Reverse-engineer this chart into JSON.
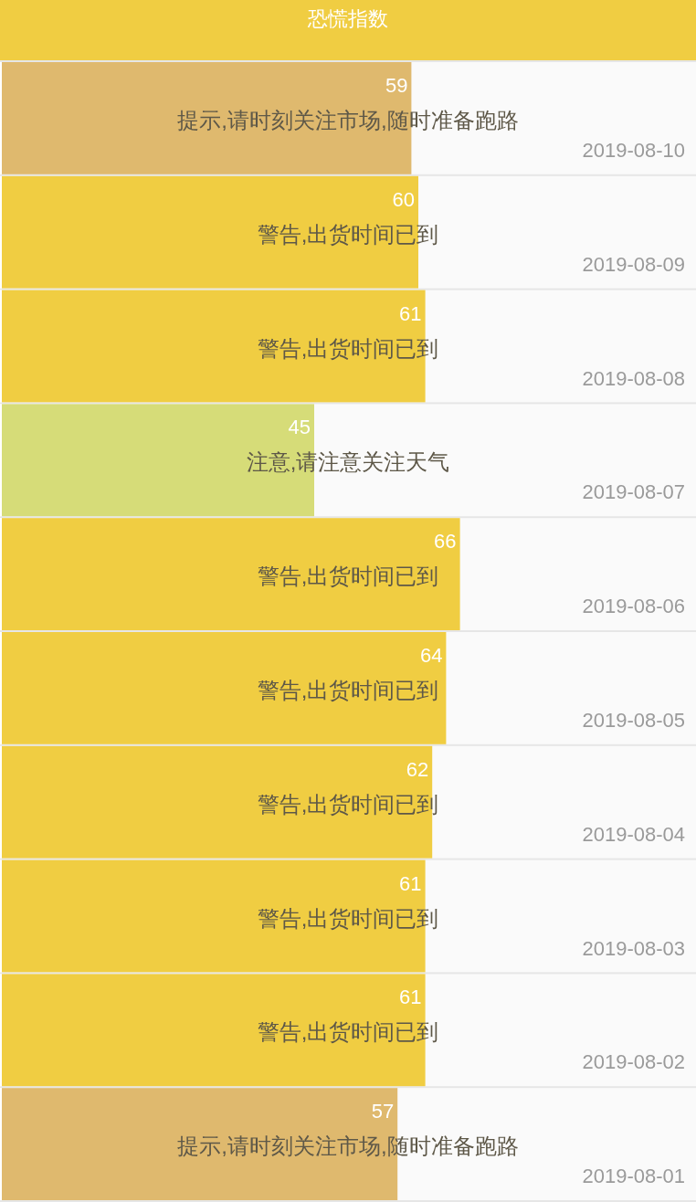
{
  "chart_data": {
    "type": "bar",
    "orientation": "horizontal",
    "title": "恐慌指数",
    "categories": [
      "2019-08-10",
      "2019-08-09",
      "2019-08-08",
      "2019-08-07",
      "2019-08-06",
      "2019-08-05",
      "2019-08-04",
      "2019-08-03",
      "2019-08-02",
      "2019-08-01"
    ],
    "values": [
      59,
      60,
      61,
      45,
      66,
      64,
      62,
      61,
      61,
      57
    ],
    "colors": [
      "#dfb96e",
      "#f0cd42",
      "#f0cd42",
      "#d6dc78",
      "#f0cd42",
      "#f0cd42",
      "#f0cd42",
      "#f0cd42",
      "#f0cd42",
      "#dfb96e"
    ],
    "xlim": [
      0,
      100
    ],
    "tick_labels": "y",
    "data_labels": true,
    "annotations": [
      "提示,请时刻关注市场,随时准备跑路",
      "警告,出货时间已到",
      "警告,出货时间已到",
      "注意,请注意关注天气",
      "警告,出货时间已到",
      "警告,出货时间已到",
      "警告,出货时间已到",
      "警告,出货时间已到",
      "警告,出货时间已到",
      "提示,请时刻关注市场,随时准备跑路"
    ]
  }
}
